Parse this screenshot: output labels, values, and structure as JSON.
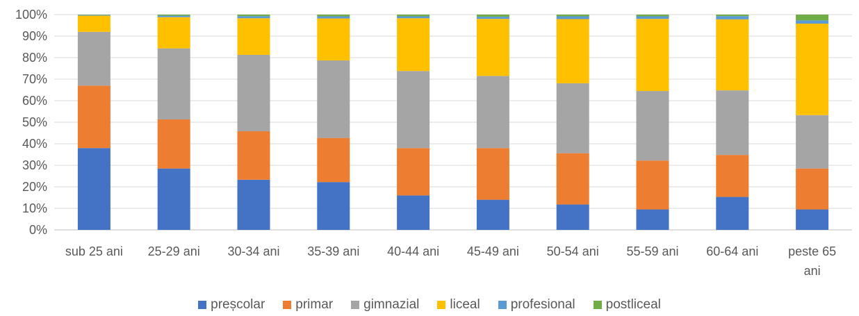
{
  "chart_data": {
    "type": "bar",
    "stacked": true,
    "percent": true,
    "categories": [
      "sub 25 ani",
      "25-29 ani",
      "30-34 ani",
      "35-39 ani",
      "40-44 ani",
      "45-49 ani",
      "50-54 ani",
      "55-59 ani",
      "60-64 ani",
      "peste 65 ani"
    ],
    "series": [
      {
        "name": "preșcolar",
        "color": "#4472C4",
        "values": [
          38,
          28.5,
          23.3,
          22.2,
          16.0,
          14.0,
          11.8,
          9.5,
          15.3,
          9.5
        ]
      },
      {
        "name": "primar",
        "color": "#ED7D31",
        "values": [
          29,
          22.8,
          22.5,
          20.5,
          22.0,
          24.0,
          23.8,
          22.7,
          19.5,
          19.0
        ]
      },
      {
        "name": "gimnazial",
        "color": "#A5A5A5",
        "values": [
          25,
          33.0,
          35.5,
          36.0,
          35.8,
          33.5,
          32.5,
          32.3,
          30.0,
          24.8
        ]
      },
      {
        "name": "liceal",
        "color": "#FFC000",
        "values": [
          7.5,
          14.5,
          17.0,
          19.5,
          24.5,
          26.5,
          29.8,
          33.5,
          33.0,
          42.5
        ]
      },
      {
        "name": "profesional",
        "color": "#5B9BD5",
        "values": [
          0.3,
          0.7,
          1.0,
          1.0,
          0.9,
          1.0,
          1.3,
          1.2,
          1.5,
          1.5
        ]
      },
      {
        "name": "postliceal",
        "color": "#70AD47",
        "values": [
          0.2,
          0.5,
          0.7,
          0.8,
          0.8,
          1.0,
          0.8,
          0.8,
          0.7,
          2.7
        ]
      }
    ],
    "xlabel": "",
    "ylabel": "",
    "ylim": [
      0,
      100
    ],
    "yticks": [
      "0%",
      "10%",
      "20%",
      "30%",
      "40%",
      "50%",
      "60%",
      "70%",
      "80%",
      "90%",
      "100%"
    ],
    "grid": true,
    "legend_position": "bottom"
  }
}
